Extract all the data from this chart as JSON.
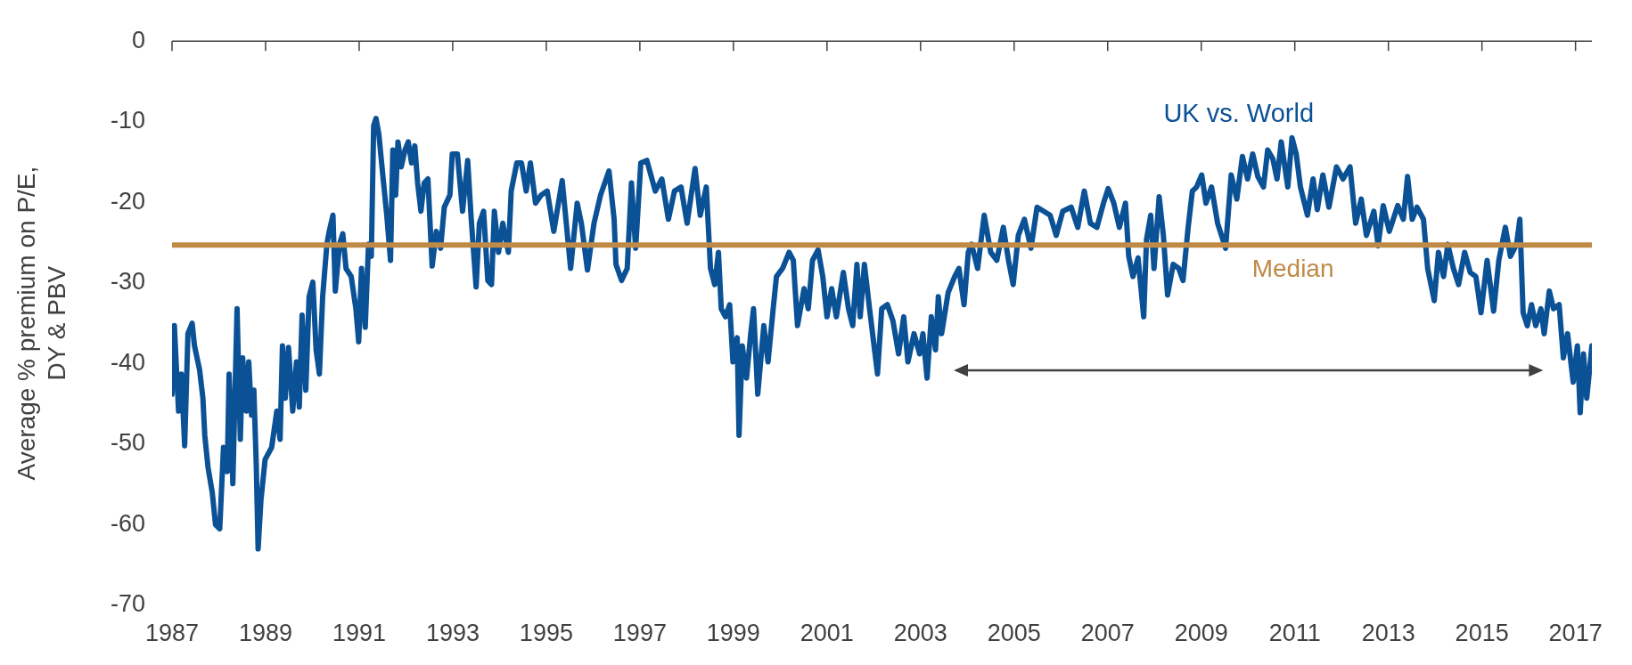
{
  "chart_data": {
    "type": "line",
    "ylabel": "Average % premium on P/E, DY & PBV",
    "xlim": [
      1987,
      2017.35
    ],
    "xticks": [
      1987,
      1989,
      1991,
      1993,
      1995,
      1997,
      1999,
      2001,
      2003,
      2005,
      2007,
      2009,
      2011,
      2013,
      2015,
      2017
    ],
    "ylim": [
      -70,
      0
    ],
    "yticks": [
      0,
      -10,
      -20,
      -30,
      -40,
      -50,
      -60,
      -70
    ],
    "grid": false,
    "legend": false,
    "marker": "none",
    "line_style": "solid",
    "series": [
      {
        "name": "UK vs. World",
        "color": "#0b5196",
        "x": [
          1987.0,
          1987.05,
          1987.14,
          1987.2,
          1987.27,
          1987.34,
          1987.43,
          1987.48,
          1987.59,
          1987.66,
          1987.7,
          1987.77,
          1987.86,
          1987.93,
          1988.02,
          1988.1,
          1988.18,
          1988.22,
          1988.3,
          1988.39,
          1988.46,
          1988.51,
          1988.59,
          1988.64,
          1988.7,
          1988.75,
          1988.8,
          1988.84,
          1988.9,
          1988.99,
          1989.13,
          1989.24,
          1989.31,
          1989.36,
          1989.42,
          1989.49,
          1989.58,
          1989.66,
          1989.72,
          1989.78,
          1989.86,
          1989.93,
          1990.01,
          1990.08,
          1990.15,
          1990.22,
          1990.31,
          1990.36,
          1990.44,
          1990.49,
          1990.58,
          1990.65,
          1990.72,
          1990.83,
          1990.93,
          1990.99,
          1991.05,
          1991.13,
          1991.2,
          1991.26,
          1991.31,
          1991.36,
          1991.42,
          1991.53,
          1991.59,
          1991.67,
          1991.72,
          1991.78,
          1991.83,
          1991.9,
          1991.98,
          1992.05,
          1992.12,
          1992.19,
          1992.25,
          1992.32,
          1992.39,
          1992.47,
          1992.56,
          1992.65,
          1992.74,
          1992.82,
          1992.94,
          1992.99,
          1993.1,
          1993.21,
          1993.32,
          1993.39,
          1993.5,
          1993.57,
          1993.66,
          1993.75,
          1993.83,
          1993.89,
          1993.98,
          1994.07,
          1994.19,
          1994.25,
          1994.37,
          1994.47,
          1994.57,
          1994.66,
          1994.77,
          1994.89,
          1995.02,
          1995.16,
          1995.34,
          1995.52,
          1995.66,
          1995.75,
          1995.88,
          1996.02,
          1996.16,
          1996.34,
          1996.45,
          1996.49,
          1996.61,
          1996.73,
          1996.82,
          1996.91,
          1997.02,
          1997.15,
          1997.33,
          1997.47,
          1997.61,
          1997.74,
          1997.88,
          1998.01,
          1998.18,
          1998.29,
          1998.42,
          1998.51,
          1998.6,
          1998.68,
          1998.74,
          1998.83,
          1998.92,
          1998.99,
          1999.08,
          1999.12,
          1999.19,
          1999.28,
          1999.37,
          1999.43,
          1999.52,
          1999.65,
          1999.74,
          1999.85,
          1999.92,
          2000.05,
          2000.19,
          2000.28,
          2000.37,
          2000.51,
          2000.6,
          2000.69,
          2000.81,
          2000.91,
          2001.0,
          2001.1,
          2001.2,
          2001.35,
          2001.46,
          2001.55,
          2001.64,
          2001.71,
          2001.8,
          2001.91,
          2002.08,
          2002.17,
          2002.29,
          2002.41,
          2002.53,
          2002.64,
          2002.73,
          2002.86,
          2002.98,
          2003.05,
          2003.14,
          2003.23,
          2003.32,
          2003.38,
          2003.45,
          2003.59,
          2003.73,
          2003.82,
          2003.93,
          2004.02,
          2004.09,
          2004.22,
          2004.36,
          2004.5,
          2004.63,
          2004.77,
          2004.88,
          2004.98,
          2005.09,
          2005.22,
          2005.36,
          2005.49,
          2005.63,
          2005.77,
          2005.9,
          2006.04,
          2006.22,
          2006.36,
          2006.5,
          2006.63,
          2006.77,
          2006.91,
          2007.01,
          2007.13,
          2007.25,
          2007.38,
          2007.45,
          2007.54,
          2007.65,
          2007.77,
          2007.83,
          2007.92,
          2007.99,
          2008.1,
          2008.19,
          2008.28,
          2008.4,
          2008.52,
          2008.61,
          2008.72,
          2008.81,
          2008.9,
          2009.01,
          2009.1,
          2009.22,
          2009.35,
          2009.52,
          2009.64,
          2009.76,
          2009.88,
          2009.99,
          2010.1,
          2010.21,
          2010.33,
          2010.42,
          2010.53,
          2010.62,
          2010.71,
          2010.85,
          2010.94,
          2011.03,
          2011.12,
          2011.27,
          2011.39,
          2011.48,
          2011.6,
          2011.73,
          2011.89,
          2012.03,
          2012.18,
          2012.3,
          2012.42,
          2012.53,
          2012.69,
          2012.78,
          2012.89,
          2013.02,
          2013.2,
          2013.32,
          2013.41,
          2013.51,
          2013.61,
          2013.75,
          2013.84,
          2013.98,
          2014.07,
          2014.18,
          2014.27,
          2014.39,
          2014.5,
          2014.63,
          2014.75,
          2014.87,
          2014.98,
          2015.11,
          2015.25,
          2015.36,
          2015.5,
          2015.61,
          2015.74,
          2015.81,
          2015.88,
          2015.97,
          2016.06,
          2016.15,
          2016.26,
          2016.33,
          2016.44,
          2016.53,
          2016.65,
          2016.74,
          2016.83,
          2016.95,
          2017.04,
          2017.1,
          2017.17,
          2017.24,
          2017.35
        ],
        "values": [
          -43.8,
          -35.3,
          -45.9,
          -41.3,
          -50.2,
          -36.3,
          -35.0,
          -37.8,
          -40.8,
          -44.3,
          -48.9,
          -52.9,
          -56.0,
          -60.0,
          -60.5,
          -50.4,
          -53.4,
          -41.3,
          -54.9,
          -33.2,
          -49.4,
          -39.3,
          -45.9,
          -39.8,
          -46.4,
          -43.3,
          -52.4,
          -63.0,
          -57.0,
          -51.9,
          -50.4,
          -45.9,
          -49.4,
          -37.8,
          -44.3,
          -38.0,
          -45.9,
          -39.8,
          -45.4,
          -34.0,
          -43.3,
          -31.7,
          -29.9,
          -38.3,
          -41.3,
          -31.7,
          -25.2,
          -23.6,
          -21.6,
          -31.0,
          -25.2,
          -23.9,
          -28.2,
          -29.2,
          -33.2,
          -37.3,
          -28.2,
          -35.5,
          -25.2,
          -26.7,
          -10.5,
          -9.6,
          -11.5,
          -18.1,
          -21.6,
          -27.2,
          -13.5,
          -19.1,
          -12.5,
          -15.6,
          -13.5,
          -12.5,
          -15.1,
          -13.0,
          -17.6,
          -21.1,
          -17.6,
          -17.1,
          -27.9,
          -23.6,
          -25.7,
          -20.6,
          -19.1,
          -14.0,
          -14.0,
          -21.1,
          -14.8,
          -21.6,
          -30.5,
          -22.6,
          -21.1,
          -29.7,
          -30.2,
          -21.1,
          -26.2,
          -22.6,
          -26.2,
          -18.6,
          -15.1,
          -15.1,
          -18.6,
          -15.1,
          -20.1,
          -19.1,
          -18.6,
          -23.6,
          -17.3,
          -28.2,
          -20.1,
          -22.6,
          -28.4,
          -22.6,
          -19.1,
          -16.1,
          -22.1,
          -27.7,
          -29.7,
          -28.2,
          -17.6,
          -25.7,
          -15.1,
          -14.8,
          -18.6,
          -17.1,
          -22.1,
          -18.6,
          -18.1,
          -22.6,
          -15.8,
          -21.6,
          -18.1,
          -28.2,
          -30.2,
          -26.2,
          -33.2,
          -34.2,
          -32.7,
          -39.8,
          -36.8,
          -48.9,
          -37.8,
          -41.8,
          -36.3,
          -33.2,
          -43.8,
          -35.3,
          -39.8,
          -33.2,
          -29.2,
          -28.2,
          -26.2,
          -27.2,
          -35.3,
          -30.7,
          -33.2,
          -27.2,
          -25.9,
          -29.2,
          -34.2,
          -30.7,
          -34.2,
          -28.7,
          -33.2,
          -35.3,
          -27.7,
          -34.2,
          -27.7,
          -33.2,
          -41.3,
          -33.2,
          -32.7,
          -34.7,
          -38.8,
          -34.2,
          -39.8,
          -36.3,
          -38.8,
          -36.3,
          -41.8,
          -34.2,
          -38.3,
          -31.7,
          -36.3,
          -31.2,
          -29.2,
          -28.2,
          -32.7,
          -26.2,
          -25.2,
          -28.2,
          -21.6,
          -26.2,
          -27.2,
          -23.1,
          -27.2,
          -30.2,
          -24.1,
          -22.1,
          -25.7,
          -20.6,
          -21.1,
          -21.6,
          -24.1,
          -21.1,
          -20.6,
          -23.1,
          -18.6,
          -22.6,
          -23.1,
          -20.1,
          -18.3,
          -20.1,
          -23.1,
          -20.1,
          -26.7,
          -29.2,
          -26.9,
          -34.2,
          -24.6,
          -21.6,
          -28.2,
          -19.3,
          -24.1,
          -31.5,
          -27.7,
          -28.2,
          -29.7,
          -23.1,
          -18.6,
          -18.1,
          -16.6,
          -20.1,
          -18.1,
          -22.6,
          -25.7,
          -16.6,
          -19.6,
          -14.3,
          -17.1,
          -14.0,
          -16.8,
          -18.1,
          -13.5,
          -14.6,
          -17.1,
          -12.5,
          -18.1,
          -12.0,
          -14.0,
          -18.1,
          -21.6,
          -17.1,
          -20.9,
          -16.6,
          -20.6,
          -15.6,
          -17.1,
          -15.6,
          -22.6,
          -19.6,
          -24.1,
          -21.1,
          -25.4,
          -20.4,
          -23.6,
          -20.4,
          -22.1,
          -16.8,
          -22.1,
          -20.6,
          -22.1,
          -28.2,
          -32.2,
          -26.2,
          -29.2,
          -25.2,
          -28.2,
          -30.2,
          -26.2,
          -28.7,
          -29.2,
          -33.7,
          -27.2,
          -33.5,
          -27.2,
          -23.1,
          -26.7,
          -25.2,
          -22.1,
          -33.7,
          -35.3,
          -32.7,
          -35.3,
          -33.2,
          -36.3,
          -31.0,
          -33.2,
          -32.7,
          -39.3,
          -36.3,
          -42.3,
          -37.8,
          -46.1,
          -38.8,
          -44.3,
          -37.8
        ]
      }
    ],
    "ref_lines": [
      {
        "axis": "y",
        "value": -25.3,
        "label": "Median",
        "color": "#bf8a46"
      }
    ]
  }
}
